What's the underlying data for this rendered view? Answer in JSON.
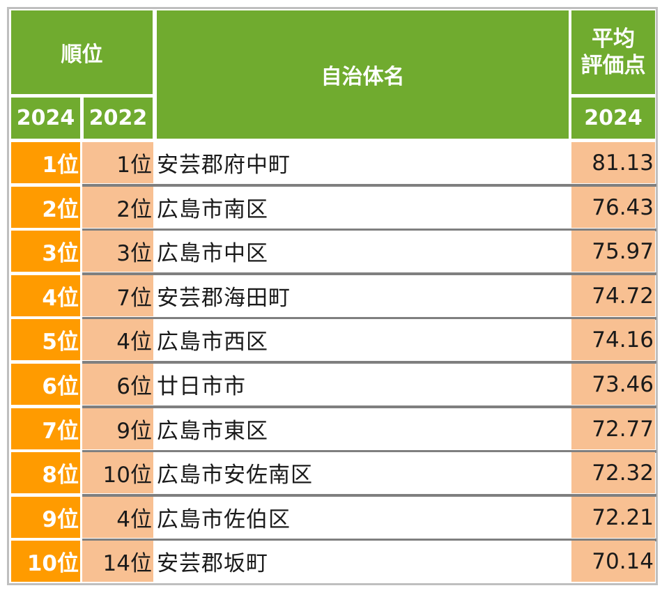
{
  "header": {
    "rank_title": "順位",
    "name_title": "自治体名",
    "score_title_line1": "平均",
    "score_title_line2": "評価点",
    "year_current": "2024",
    "year_previous": "2022",
    "score_year": "2024"
  },
  "rows": [
    {
      "rank_2024": "1位",
      "rank_2022": "1位",
      "name": "安芸郡府中町",
      "score": "81.13"
    },
    {
      "rank_2024": "2位",
      "rank_2022": "2位",
      "name": "広島市南区",
      "score": "76.43"
    },
    {
      "rank_2024": "3位",
      "rank_2022": "3位",
      "name": "広島市中区",
      "score": "75.97"
    },
    {
      "rank_2024": "4位",
      "rank_2022": "7位",
      "name": "安芸郡海田町",
      "score": "74.72"
    },
    {
      "rank_2024": "5位",
      "rank_2022": "4位",
      "name": "広島市西区",
      "score": "74.16"
    },
    {
      "rank_2024": "6位",
      "rank_2022": "6位",
      "name": "廿日市市",
      "score": "73.46"
    },
    {
      "rank_2024": "7位",
      "rank_2022": "9位",
      "name": "広島市東区",
      "score": "72.77"
    },
    {
      "rank_2024": "8位",
      "rank_2022": "10位",
      "name": "広島市安佐南区",
      "score": "72.32"
    },
    {
      "rank_2024": "9位",
      "rank_2022": "4位",
      "name": "広島市佐伯区",
      "score": "72.21"
    },
    {
      "rank_2024": "10位",
      "rank_2022": "14位",
      "name": "安芸郡坂町",
      "score": "70.14"
    }
  ],
  "colors": {
    "header_green": "#70ab2f",
    "rank_orange": "#ff9b00",
    "light_peach": "#f8c092",
    "separator_gray": "#7f7f7f"
  }
}
